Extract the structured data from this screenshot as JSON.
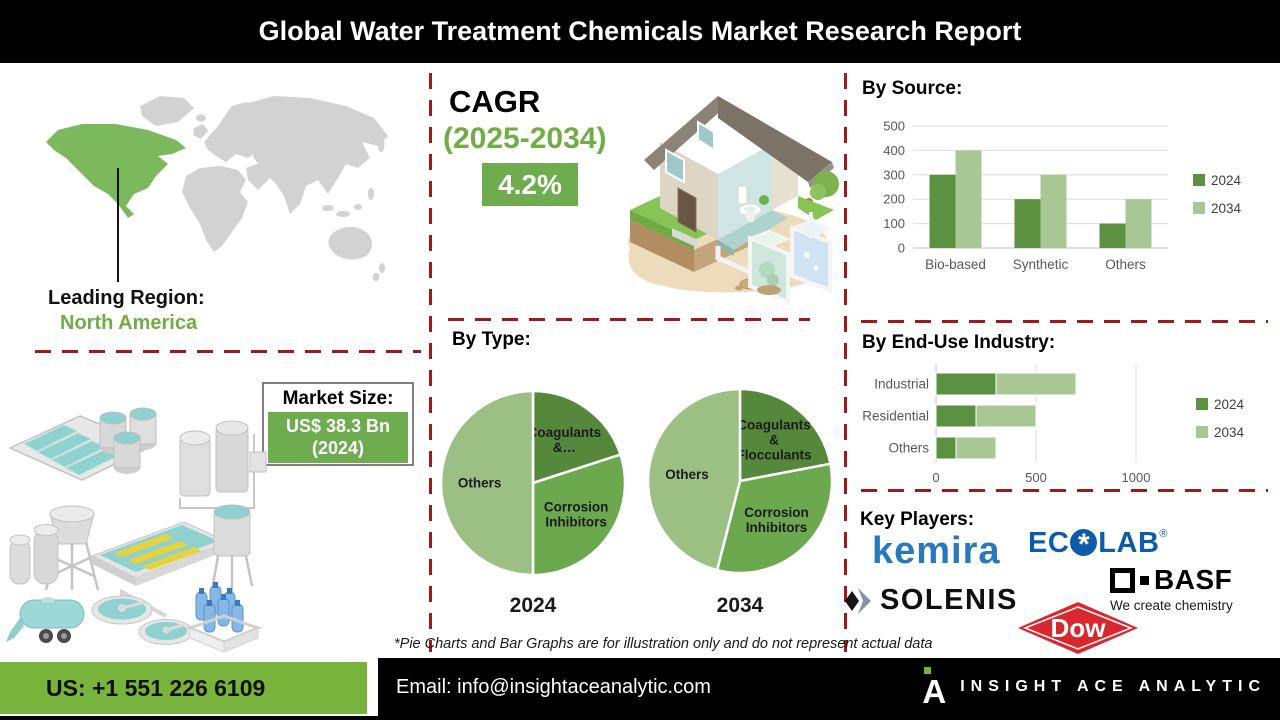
{
  "header": {
    "title": "Global Water Treatment Chemicals Market Research Report"
  },
  "leading_region": {
    "label": "Leading Region:",
    "value": "North America"
  },
  "market_size": {
    "label": "Market Size:",
    "value": "US$ 38.3 Bn",
    "year": "(2024)"
  },
  "cagr": {
    "label": "CAGR",
    "period": "(2025-2034)",
    "value": "4.2%"
  },
  "sections": {
    "by_type": "By Type:"
  },
  "chart_data": [
    {
      "id": "by_source",
      "type": "bar",
      "title": "By Source:",
      "categories": [
        "Bio-based",
        "Synthetic",
        "Others"
      ],
      "series": [
        {
          "name": "2024",
          "values": [
            300,
            200,
            100
          ]
        },
        {
          "name": "2034",
          "values": [
            400,
            300,
            200
          ]
        }
      ],
      "ylim": [
        0,
        500
      ],
      "yticks": [
        0,
        100,
        200,
        300,
        400,
        500
      ],
      "grid": true,
      "legend_position": "right"
    },
    {
      "id": "by_type_2024",
      "type": "pie",
      "title": "2024",
      "slices": [
        {
          "label": "Coagulants &…",
          "label_lines": [
            "Coagulants",
            "&…"
          ],
          "value": 20
        },
        {
          "label": "Corrosion Inhibitors",
          "label_lines": [
            "Corrosion",
            "Inhibitors"
          ],
          "value": 30
        },
        {
          "label": "Others",
          "label_lines": [
            "Others"
          ],
          "value": 50
        }
      ]
    },
    {
      "id": "by_type_2034",
      "type": "pie",
      "title": "2034",
      "slices": [
        {
          "label": "Coagulants & Flocculants",
          "label_lines": [
            "Coagulants",
            "&",
            "Flocculants"
          ],
          "value": 22
        },
        {
          "label": "Corrosion Inhibitors",
          "label_lines": [
            "Corrosion",
            "Inhibitors"
          ],
          "value": 32
        },
        {
          "label": "Others",
          "label_lines": [
            "Others"
          ],
          "value": 46
        }
      ]
    },
    {
      "id": "by_end_use",
      "type": "stacked_bar_horizontal",
      "title": "By End-Use Industry:",
      "categories": [
        "Industrial",
        "Residential",
        "Others"
      ],
      "series": [
        {
          "name": "2024",
          "values": [
            300,
            200,
            100
          ]
        },
        {
          "name": "2034",
          "values": [
            400,
            300,
            200
          ]
        }
      ],
      "xlim": [
        0,
        1000
      ],
      "xticks": [
        0,
        500,
        1000
      ],
      "grid": true,
      "legend_position": "right"
    }
  ],
  "key_players": {
    "heading": "Key Players:",
    "kemira": "kemira",
    "ecolab_prefix": "EC",
    "ecolab_suffix": "LAB",
    "ecolab_reg": "®",
    "solenis": "SOLENIS",
    "basf": "BASF",
    "basf_tagline": "We create chemistry",
    "dow": "Dow"
  },
  "footnote": "*Pie Charts and Bar Graphs are for illustration only and do not represent actual data",
  "footer": {
    "phone": "US: +1 551 226 6109",
    "email": "Email: info@insightaceanalytic.com",
    "brand": "INSIGHT ACE ANALYTIC",
    "brand_initial": "A"
  },
  "colors": {
    "accent_green": "#6fac4f",
    "text_green": "#70ad47",
    "map_green": "#7cb85c",
    "dash_red": "#9e1b1b",
    "footer_green": "#78b43c",
    "year2024": "#5b9140",
    "year2034": "#a9c795",
    "pie": [
      "#55883b",
      "#6ba84e",
      "#9cc084"
    ],
    "kemira_blue": "#2878be",
    "ecolab_blue": "#0c5cab",
    "dow_red": "#d9272e"
  }
}
